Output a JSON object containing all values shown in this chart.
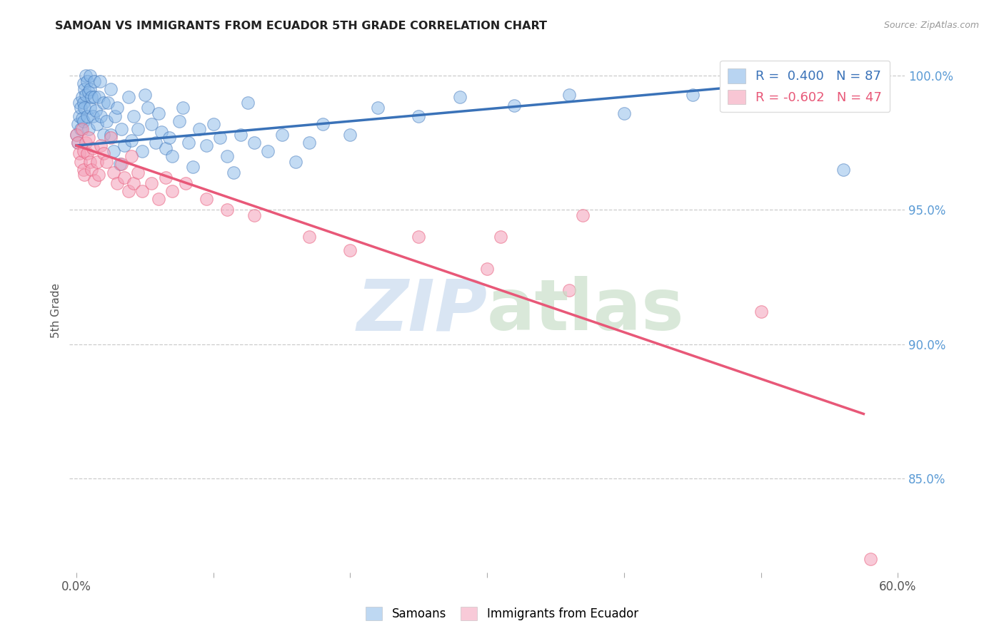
{
  "title": "SAMOAN VS IMMIGRANTS FROM ECUADOR 5TH GRADE CORRELATION CHART",
  "source": "Source: ZipAtlas.com",
  "ylabel": "5th Grade",
  "yticks": [
    "100.0%",
    "95.0%",
    "90.0%",
    "85.0%"
  ],
  "ytick_vals": [
    1.0,
    0.95,
    0.9,
    0.85
  ],
  "legend1_label": "R =  0.400   N = 87",
  "legend2_label": "R = -0.602   N = 47",
  "blue_color": "#89b8e8",
  "pink_color": "#f4a0b8",
  "blue_line_color": "#3a72b8",
  "pink_line_color": "#e85878",
  "blue_scatter": [
    [
      0.0,
      0.978
    ],
    [
      0.001,
      0.982
    ],
    [
      0.001,
      0.975
    ],
    [
      0.002,
      0.99
    ],
    [
      0.002,
      0.985
    ],
    [
      0.003,
      0.98
    ],
    [
      0.003,
      0.988
    ],
    [
      0.004,
      0.984
    ],
    [
      0.004,
      0.992
    ],
    [
      0.005,
      0.997
    ],
    [
      0.005,
      0.99
    ],
    [
      0.005,
      0.983
    ],
    [
      0.006,
      0.995
    ],
    [
      0.006,
      0.988
    ],
    [
      0.007,
      1.0
    ],
    [
      0.007,
      0.993
    ],
    [
      0.008,
      0.998
    ],
    [
      0.008,
      0.985
    ],
    [
      0.009,
      0.994
    ],
    [
      0.009,
      0.98
    ],
    [
      0.01,
      1.0
    ],
    [
      0.01,
      0.995
    ],
    [
      0.01,
      0.988
    ],
    [
      0.011,
      0.992
    ],
    [
      0.012,
      0.985
    ],
    [
      0.013,
      0.998
    ],
    [
      0.013,
      0.992
    ],
    [
      0.014,
      0.987
    ],
    [
      0.015,
      0.982
    ],
    [
      0.016,
      0.992
    ],
    [
      0.017,
      0.998
    ],
    [
      0.018,
      0.985
    ],
    [
      0.02,
      0.978
    ],
    [
      0.02,
      0.99
    ],
    [
      0.022,
      0.983
    ],
    [
      0.023,
      0.99
    ],
    [
      0.025,
      0.995
    ],
    [
      0.025,
      0.978
    ],
    [
      0.027,
      0.972
    ],
    [
      0.028,
      0.985
    ],
    [
      0.03,
      0.988
    ],
    [
      0.032,
      0.967
    ],
    [
      0.033,
      0.98
    ],
    [
      0.035,
      0.974
    ],
    [
      0.038,
      0.992
    ],
    [
      0.04,
      0.976
    ],
    [
      0.042,
      0.985
    ],
    [
      0.045,
      0.98
    ],
    [
      0.048,
      0.972
    ],
    [
      0.05,
      0.993
    ],
    [
      0.052,
      0.988
    ],
    [
      0.055,
      0.982
    ],
    [
      0.058,
      0.975
    ],
    [
      0.06,
      0.986
    ],
    [
      0.062,
      0.979
    ],
    [
      0.065,
      0.973
    ],
    [
      0.068,
      0.977
    ],
    [
      0.07,
      0.97
    ],
    [
      0.075,
      0.983
    ],
    [
      0.078,
      0.988
    ],
    [
      0.082,
      0.975
    ],
    [
      0.085,
      0.966
    ],
    [
      0.09,
      0.98
    ],
    [
      0.095,
      0.974
    ],
    [
      0.1,
      0.982
    ],
    [
      0.105,
      0.977
    ],
    [
      0.11,
      0.97
    ],
    [
      0.115,
      0.964
    ],
    [
      0.12,
      0.978
    ],
    [
      0.125,
      0.99
    ],
    [
      0.13,
      0.975
    ],
    [
      0.14,
      0.972
    ],
    [
      0.15,
      0.978
    ],
    [
      0.16,
      0.968
    ],
    [
      0.17,
      0.975
    ],
    [
      0.18,
      0.982
    ],
    [
      0.2,
      0.978
    ],
    [
      0.22,
      0.988
    ],
    [
      0.25,
      0.985
    ],
    [
      0.28,
      0.992
    ],
    [
      0.32,
      0.989
    ],
    [
      0.36,
      0.993
    ],
    [
      0.4,
      0.986
    ],
    [
      0.45,
      0.993
    ],
    [
      0.5,
      0.996
    ],
    [
      0.55,
      0.999
    ],
    [
      0.56,
      0.965
    ]
  ],
  "pink_scatter": [
    [
      0.0,
      0.978
    ],
    [
      0.001,
      0.975
    ],
    [
      0.002,
      0.971
    ],
    [
      0.003,
      0.968
    ],
    [
      0.004,
      0.98
    ],
    [
      0.005,
      0.972
    ],
    [
      0.005,
      0.965
    ],
    [
      0.006,
      0.963
    ],
    [
      0.007,
      0.975
    ],
    [
      0.008,
      0.971
    ],
    [
      0.009,
      0.977
    ],
    [
      0.01,
      0.968
    ],
    [
      0.011,
      0.965
    ],
    [
      0.012,
      0.973
    ],
    [
      0.013,
      0.961
    ],
    [
      0.015,
      0.968
    ],
    [
      0.016,
      0.963
    ],
    [
      0.018,
      0.974
    ],
    [
      0.02,
      0.971
    ],
    [
      0.022,
      0.968
    ],
    [
      0.025,
      0.977
    ],
    [
      0.027,
      0.964
    ],
    [
      0.03,
      0.96
    ],
    [
      0.033,
      0.967
    ],
    [
      0.035,
      0.962
    ],
    [
      0.038,
      0.957
    ],
    [
      0.04,
      0.97
    ],
    [
      0.042,
      0.96
    ],
    [
      0.045,
      0.964
    ],
    [
      0.048,
      0.957
    ],
    [
      0.055,
      0.96
    ],
    [
      0.06,
      0.954
    ],
    [
      0.065,
      0.962
    ],
    [
      0.07,
      0.957
    ],
    [
      0.08,
      0.96
    ],
    [
      0.095,
      0.954
    ],
    [
      0.11,
      0.95
    ],
    [
      0.13,
      0.948
    ],
    [
      0.17,
      0.94
    ],
    [
      0.2,
      0.935
    ],
    [
      0.25,
      0.94
    ],
    [
      0.3,
      0.928
    ],
    [
      0.31,
      0.94
    ],
    [
      0.36,
      0.92
    ],
    [
      0.37,
      0.948
    ],
    [
      0.5,
      0.912
    ],
    [
      0.58,
      0.82
    ]
  ],
  "blue_line_x": [
    0.0,
    0.575
  ],
  "blue_line_y": [
    0.974,
    1.0
  ],
  "pink_line_x": [
    0.0,
    0.575
  ],
  "pink_line_y": [
    0.974,
    0.874
  ],
  "xlim": [
    -0.005,
    0.605
  ],
  "ylim": [
    0.815,
    1.01
  ]
}
